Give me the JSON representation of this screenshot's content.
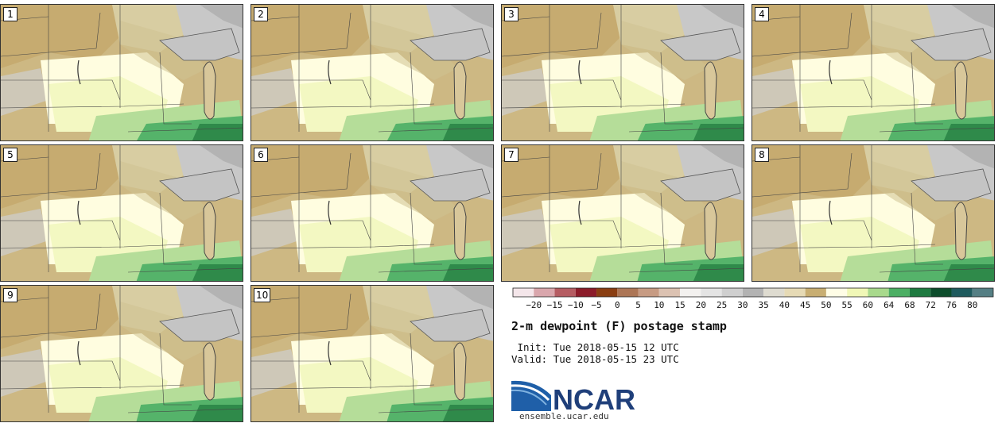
{
  "panels": [
    {
      "label": "1"
    },
    {
      "label": "2"
    },
    {
      "label": "3"
    },
    {
      "label": "4"
    },
    {
      "label": "5"
    },
    {
      "label": "6"
    },
    {
      "label": "7"
    },
    {
      "label": "8"
    },
    {
      "label": "9"
    },
    {
      "label": "10"
    }
  ],
  "legend": {
    "tick_labels": [
      "−20",
      "−15",
      "−10",
      "−5",
      "0",
      "5",
      "10",
      "15",
      "20",
      "25",
      "30",
      "35",
      "40",
      "45",
      "50",
      "55",
      "60",
      "64",
      "68",
      "72",
      "76",
      "80"
    ],
    "colors": [
      "#f4e6ea",
      "#d9a6ac",
      "#b55c62",
      "#8c1c2a",
      "#8a3e12",
      "#ad7656",
      "#c79b83",
      "#dcc2b2",
      "#f3f1ef",
      "#e4e4e4",
      "#cfcfcf",
      "#b3b3b3",
      "#dedbd0",
      "#e6dab5",
      "#c8ae72",
      "#fffde6",
      "#f0f7b6",
      "#a8d98c",
      "#4caf64",
      "#1e7a40",
      "#0d4d2c",
      "#1f5b5e",
      "#557f84"
    ]
  },
  "title": "2-m dewpoint (F) postage stamp",
  "init": " Init: Tue 2018-05-15 12 UTC",
  "valid": "Valid: Tue 2018-05-15 23 UTC",
  "logo": {
    "text": "NCAR",
    "url": "ensemble.ucar.edu",
    "color": "#1f3f7a"
  }
}
